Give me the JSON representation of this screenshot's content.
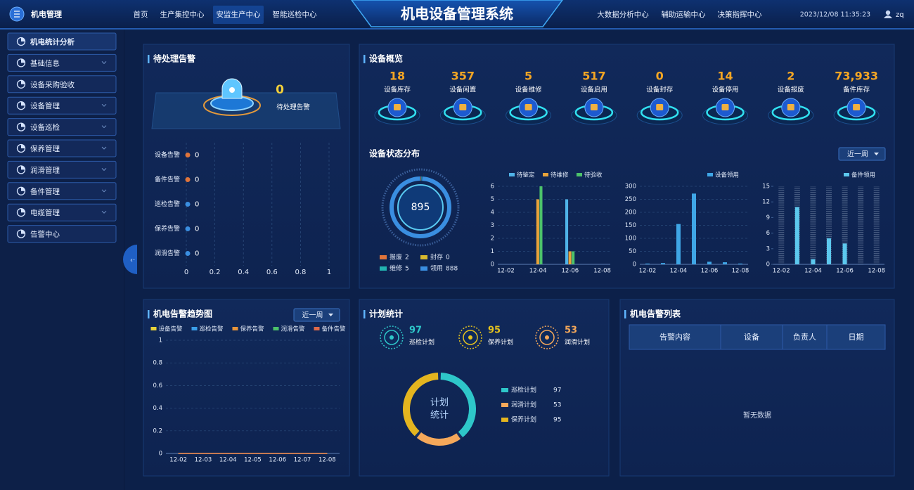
{
  "header": {
    "logo": "机电管理",
    "nav_left": [
      "首页",
      "生产集控中心",
      "安监生产中心",
      "智能巡检中心"
    ],
    "title": "机电设备管理系统",
    "nav_right": [
      "大数据分析中心",
      "辅助运输中心",
      "决策指挥中心"
    ],
    "datetime": "2023/12/08  11:35:23",
    "user": "zq"
  },
  "sidebar": {
    "items": [
      "机电统计分析",
      "基础信息",
      "设备采购验收",
      "设备管理",
      "设备巡检",
      "保养管理",
      "润滑管理",
      "备件管理",
      "电缆管理",
      "告警中心"
    ]
  },
  "alarm_panel": {
    "title": "待处理告警",
    "count": 0,
    "count_label": "待处理告警"
  },
  "overview": {
    "title": "设备概览",
    "items": [
      {
        "value": "18",
        "label": "设备库存"
      },
      {
        "value": "357",
        "label": "设备闲置"
      },
      {
        "value": "5",
        "label": "设备维修"
      },
      {
        "value": "517",
        "label": "设备启用"
      },
      {
        "value": "0",
        "label": "设备封存"
      },
      {
        "value": "14",
        "label": "设备停用"
      },
      {
        "value": "2",
        "label": "设备报废"
      },
      {
        "value": "73,933",
        "label": "备件库存"
      }
    ]
  },
  "status_panel": {
    "title": "设备状态分布",
    "range": "近一周"
  },
  "trend_panel": {
    "title": "机电告警趋势图",
    "range": "近一周"
  },
  "plan_panel": {
    "title": "计划统计",
    "stats": [
      {
        "value": 97,
        "label": "巡检计划"
      },
      {
        "value": 95,
        "label": "保养计划"
      },
      {
        "value": 53,
        "label": "润滑计划"
      }
    ]
  },
  "alarm_list": {
    "title": "机电告警列表",
    "columns": [
      "告警内容",
      "设备",
      "负责人",
      "日期"
    ],
    "empty": "暂无数据"
  },
  "chart_data": [
    {
      "type": "hbar",
      "categories": [
        "设备告警",
        "备件告警",
        "巡检告警",
        "保养告警",
        "润滑告警"
      ],
      "values": [
        0,
        0,
        0,
        0,
        0
      ],
      "colors": [
        "#e0743a",
        "#e0743a",
        "#3a8ee0",
        "#3a8ee0",
        "#3a8ee0"
      ],
      "xlim": [
        0,
        1
      ],
      "xticks": [
        0,
        0.2,
        0.4,
        0.6,
        0.8,
        1
      ],
      "grid": true
    },
    {
      "type": "donut",
      "total": 895,
      "categories": [
        "报废",
        "封存",
        "维修",
        "领用"
      ],
      "values": [
        2,
        0,
        5,
        888
      ],
      "colors": [
        "#e0743a",
        "#d8b92e",
        "#22b3b0",
        "#3a8ee0"
      ]
    },
    {
      "type": "bar",
      "categories": [
        "12-02",
        null,
        "12-04",
        null,
        "12-06",
        null,
        "12-08"
      ],
      "series": [
        {
          "name": "待鉴定",
          "color": "#4fb3e8",
          "values": [
            0,
            0,
            0,
            0,
            5,
            0,
            0
          ]
        },
        {
          "name": "待维修",
          "color": "#e8a33a",
          "values": [
            0,
            0,
            5,
            0,
            1,
            0,
            0
          ]
        },
        {
          "name": "待验收",
          "color": "#4cc26a",
          "values": [
            0,
            0,
            6,
            0,
            1,
            0,
            0
          ]
        }
      ],
      "ylim": [
        0,
        6
      ],
      "yticks": [
        0,
        1,
        2,
        3,
        4,
        5,
        6
      ],
      "grid": true
    },
    {
      "type": "bar",
      "categories": [
        "12-02",
        null,
        "12-04",
        null,
        "12-06",
        null,
        "12-08"
      ],
      "series": [
        {
          "name": "设备领用",
          "color": "#3fa6e6",
          "values": [
            3,
            5,
            155,
            272,
            10,
            8,
            3
          ]
        }
      ],
      "ylim": [
        0,
        300
      ],
      "yticks": [
        0,
        50,
        100,
        150,
        200,
        250,
        300
      ],
      "grid": true
    },
    {
      "type": "bar",
      "categories": [
        "12-02",
        null,
        "12-04",
        null,
        "12-06",
        null,
        "12-08"
      ],
      "series": [
        {
          "name": "备件领用",
          "color": "#5cc8ee",
          "values": [
            0,
            11,
            1,
            5,
            4,
            0,
            0
          ]
        }
      ],
      "ylim": [
        0,
        15
      ],
      "yticks": [
        0,
        3,
        6,
        9,
        12,
        15
      ],
      "grid": false,
      "bar_background": true
    },
    {
      "type": "line",
      "categories": [
        "12-02",
        "12-03",
        "12-04",
        "12-05",
        "12-06",
        "12-07",
        "12-08"
      ],
      "series": [
        {
          "name": "设备告警",
          "color": "#e8d23a",
          "values": [
            0,
            0,
            0,
            0,
            0,
            0,
            0
          ]
        },
        {
          "name": "巡检告警",
          "color": "#3a9ee8",
          "values": [
            0,
            0,
            0,
            0,
            0,
            0,
            0
          ]
        },
        {
          "name": "保养告警",
          "color": "#e8943a",
          "values": [
            0,
            0,
            0,
            0,
            0,
            0,
            0
          ]
        },
        {
          "name": "润滑告警",
          "color": "#4cc26a",
          "values": [
            0,
            0,
            0,
            0,
            0,
            0,
            0
          ]
        },
        {
          "name": "备件告警",
          "color": "#e06a4a",
          "values": [
            0,
            0,
            0,
            0,
            0,
            0,
            0
          ]
        }
      ],
      "ylim": [
        0,
        1
      ],
      "yticks": [
        0,
        0.2,
        0.4,
        0.6,
        0.8,
        1
      ],
      "grid": true
    },
    {
      "type": "donut",
      "center_label": [
        "计划",
        "统计"
      ],
      "categories": [
        "巡检计划",
        "润滑计划",
        "保养计划"
      ],
      "values": [
        97,
        53,
        95
      ],
      "colors": [
        "#2ec7c9",
        "#f5a85a",
        "#e4b51f"
      ]
    }
  ]
}
